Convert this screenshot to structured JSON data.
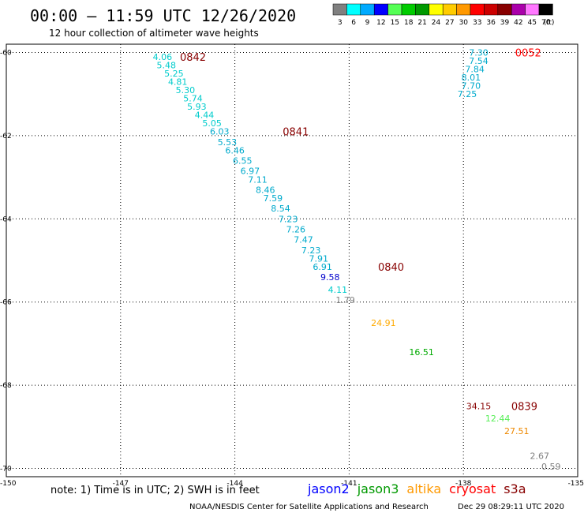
{
  "chart_data": {
    "type": "scatter",
    "title": "00:00 – 11:59 UTC 12/26/2020",
    "subtitle": "12 hour collection of altimeter wave heights",
    "xlim": [
      -150,
      -135
    ],
    "ylim": [
      -70.2,
      -59.8
    ],
    "x_ticks": [
      "-150",
      "-147",
      "-144",
      "-141",
      "-138",
      "-135"
    ],
    "x_tick_values": [
      -150,
      -147,
      -144,
      -141,
      -138,
      -135
    ],
    "y_ticks": [
      "-60",
      "-62",
      "-64",
      "-66",
      "-68",
      "-70"
    ],
    "y_tick_values": [
      -60,
      -62,
      -64,
      -66,
      -68,
      -70
    ],
    "grid": true,
    "color_scale": {
      "labels": [
        "3",
        "6",
        "9",
        "12",
        "15",
        "18",
        "21",
        "24",
        "27",
        "30",
        "33",
        "36",
        "39",
        "42",
        "45",
        "70"
      ],
      "unit": "(ft)",
      "colors": [
        "#808080",
        "#00ffff",
        "#00aaff",
        "#0000ff",
        "#55ff55",
        "#00cc00",
        "#009900",
        "#ffff00",
        "#ffcc00",
        "#ff9900",
        "#ff0000",
        "#cc0000",
        "#880000",
        "#aa00aa",
        "#ff77ff",
        "#000000"
      ]
    },
    "points": [
      {
        "x": -145.9,
        "y": -60.1,
        "value": "4.06",
        "color": "#00cccc"
      },
      {
        "x": -145.8,
        "y": -60.3,
        "value": "5.48",
        "color": "#00cccc"
      },
      {
        "x": -145.6,
        "y": -60.5,
        "value": "5.25",
        "color": "#00cccc"
      },
      {
        "x": -145.5,
        "y": -60.7,
        "value": "4.81",
        "color": "#00cccc"
      },
      {
        "x": -145.3,
        "y": -60.9,
        "value": "5.30",
        "color": "#00cccc"
      },
      {
        "x": -145.1,
        "y": -61.1,
        "value": "5.74",
        "color": "#00cccc"
      },
      {
        "x": -145.0,
        "y": -61.3,
        "value": "5.93",
        "color": "#00cccc"
      },
      {
        "x": -144.8,
        "y": -61.5,
        "value": "4.44",
        "color": "#00cccc"
      },
      {
        "x": -144.6,
        "y": -61.7,
        "value": "5.05",
        "color": "#00cccc"
      },
      {
        "x": -144.4,
        "y": -61.9,
        "value": "6.03",
        "color": "#00aacc"
      },
      {
        "x": -144.2,
        "y": -62.15,
        "value": "5.53",
        "color": "#00aacc"
      },
      {
        "x": -144.0,
        "y": -62.35,
        "value": "6.46",
        "color": "#00aacc"
      },
      {
        "x": -143.8,
        "y": -62.6,
        "value": "6.55",
        "color": "#00aacc"
      },
      {
        "x": -143.6,
        "y": -62.85,
        "value": "6.97",
        "color": "#00aacc"
      },
      {
        "x": -143.4,
        "y": -63.05,
        "value": "7.11",
        "color": "#00aacc"
      },
      {
        "x": -143.2,
        "y": -63.3,
        "value": "8.46",
        "color": "#00aacc"
      },
      {
        "x": -143.0,
        "y": -63.5,
        "value": "7.59",
        "color": "#00aacc"
      },
      {
        "x": -142.8,
        "y": -63.75,
        "value": "8.54",
        "color": "#00aacc"
      },
      {
        "x": -142.6,
        "y": -64.0,
        "value": "7.23",
        "color": "#00aacc"
      },
      {
        "x": -142.4,
        "y": -64.25,
        "value": "7.26",
        "color": "#00aacc"
      },
      {
        "x": -142.2,
        "y": -64.5,
        "value": "7.47",
        "color": "#00aacc"
      },
      {
        "x": -142.0,
        "y": -64.75,
        "value": "7.23",
        "color": "#00aacc"
      },
      {
        "x": -141.8,
        "y": -64.95,
        "value": "7.91",
        "color": "#00aacc"
      },
      {
        "x": -141.7,
        "y": -65.15,
        "value": "6.91",
        "color": "#00aacc"
      },
      {
        "x": -141.5,
        "y": -65.4,
        "value": "9.58",
        "color": "#0000cc"
      },
      {
        "x": -141.3,
        "y": -65.7,
        "value": "4.11",
        "color": "#00cccc"
      },
      {
        "x": -141.1,
        "y": -65.95,
        "value": "1.79",
        "color": "#808080"
      },
      {
        "x": -140.1,
        "y": -66.5,
        "value": "24.91",
        "color": "#ffaa00"
      },
      {
        "x": -139.1,
        "y": -67.2,
        "value": "16.51",
        "color": "#00aa00"
      },
      {
        "x": -137.6,
        "y": -60.0,
        "value": "7.30",
        "color": "#00aacc"
      },
      {
        "x": -137.6,
        "y": -60.2,
        "value": "7.54",
        "color": "#00aacc"
      },
      {
        "x": -137.7,
        "y": -60.4,
        "value": "7.84",
        "color": "#00aacc"
      },
      {
        "x": -137.8,
        "y": -60.6,
        "value": "8.01",
        "color": "#00aacc"
      },
      {
        "x": -137.8,
        "y": -60.8,
        "value": "7.70",
        "color": "#00aacc"
      },
      {
        "x": -137.9,
        "y": -61.0,
        "value": "7.25",
        "color": "#00aacc"
      },
      {
        "x": -137.6,
        "y": -68.5,
        "value": "34.15",
        "color": "#880000"
      },
      {
        "x": -137.1,
        "y": -68.8,
        "value": "12.44",
        "color": "#55ee55"
      },
      {
        "x": -136.6,
        "y": -69.1,
        "value": "27.51",
        "color": "#ee8800"
      },
      {
        "x": -136.0,
        "y": -69.7,
        "value": "2.67",
        "color": "#808080"
      },
      {
        "x": -135.7,
        "y": -69.95,
        "value": "0.59",
        "color": "#808080"
      }
    ],
    "time_labels": [
      {
        "x": -145.1,
        "y": -60.1,
        "text": "0842",
        "color": "#880000"
      },
      {
        "x": -142.4,
        "y": -61.9,
        "text": "0841",
        "color": "#880000"
      },
      {
        "x": -139.9,
        "y": -65.15,
        "text": "0840",
        "color": "#880000"
      },
      {
        "x": -136.3,
        "y": -60.0,
        "text": "0052",
        "color": "#ff0000"
      },
      {
        "x": -136.4,
        "y": -68.5,
        "text": "0839",
        "color": "#880000"
      }
    ]
  },
  "note": "note: 1) Time is in UTC; 2) SWH is in feet",
  "satellites": [
    {
      "name": "jason2",
      "color": "#0000ff"
    },
    {
      "name": "jason3",
      "color": "#009900"
    },
    {
      "name": "altika",
      "color": "#ff9900"
    },
    {
      "name": "cryosat",
      "color": "#ff0000"
    },
    {
      "name": "s3a",
      "color": "#880000"
    }
  ],
  "credit": "NOAA/NESDIS Center for Satellite Applications and Research",
  "timestamp": "Dec 29 08:29:11 UTC 2020"
}
